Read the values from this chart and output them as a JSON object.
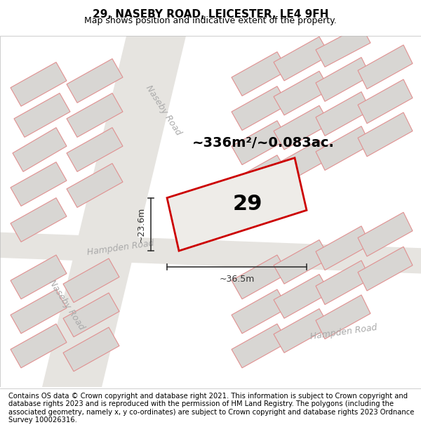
{
  "title_line1": "29, NASEBY ROAD, LEICESTER, LE4 9FH",
  "title_line2": "Map shows position and indicative extent of the property.",
  "footer_text": "Contains OS data © Crown copyright and database right 2021. This information is subject to Crown copyright and database rights 2023 and is reproduced with the permission of HM Land Registry. The polygons (including the associated geometry, namely x, y co-ordinates) are subject to Crown copyright and database rights 2023 Ordnance Survey 100026316.",
  "area_label": "~336m²/~0.083ac.",
  "number_label": "29",
  "width_label": "~36.5m",
  "height_label": "~23.6m",
  "map_bg": "#f0eeeb",
  "building_fill": "#d8d6d3",
  "building_edge": "#e09090",
  "road_fill": "#e6e4e0",
  "prop_fill": "#eeece8",
  "prop_edge": "#cc0000",
  "road_label_color": "#aaaaaa",
  "measurement_color": "#333333",
  "title_fontsize": 11,
  "subtitle_fontsize": 9,
  "footer_fontsize": 7.2,
  "area_fontsize": 14,
  "number_fontsize": 22,
  "label_fontsize": 9,
  "road_label_fontsize": 9
}
